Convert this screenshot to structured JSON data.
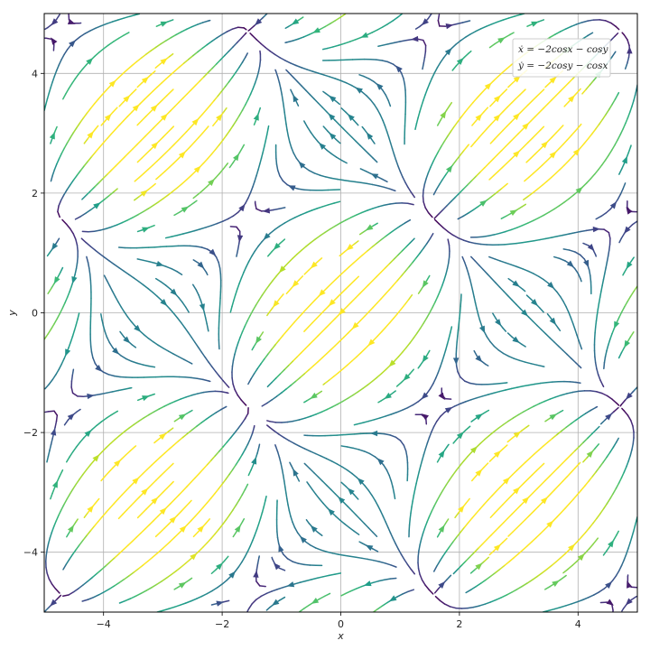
{
  "chart_data": {
    "type": "streamplot",
    "title": "",
    "xlabel": "x",
    "ylabel": "y",
    "xlim": [
      -5,
      5
    ],
    "ylim": [
      -5,
      5
    ],
    "xticks": [
      -4,
      -2,
      0,
      2,
      4
    ],
    "yticks": [
      -4,
      -2,
      0,
      2,
      4
    ],
    "xtick_labels": [
      "−4",
      "−2",
      "0",
      "2",
      "4"
    ],
    "ytick_labels": [
      "−4",
      "−2",
      "0",
      "2",
      "4"
    ],
    "grid": true,
    "legend_position": "top-right",
    "colormap": "viridis",
    "color_encodes": "speed",
    "equations": {
      "x_dot": "ẋ = −2cosx − cosy",
      "y_dot": "ẏ = −2cosy − cosx"
    },
    "legend": [
      "ẋ = −2cosx − cosy",
      "ẏ = −2cosy − cosx"
    ],
    "equilibria": [
      [
        -1.57,
        -1.57
      ],
      [
        1.57,
        1.57
      ],
      [
        -1.57,
        1.57
      ],
      [
        1.57,
        -1.57
      ],
      [
        -4.71,
        1.57
      ],
      [
        4.71,
        -1.57
      ]
    ]
  }
}
